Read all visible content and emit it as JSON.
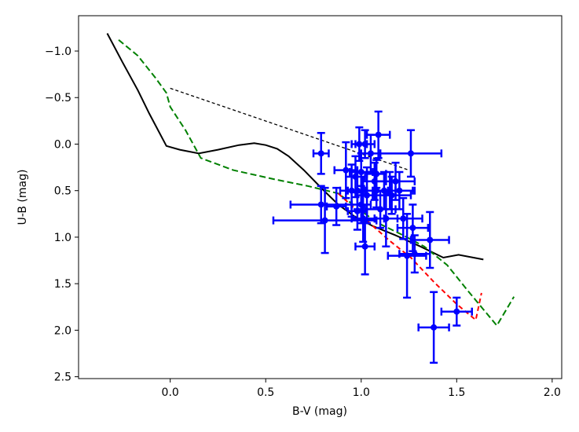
{
  "chart_data": {
    "type": "scatter",
    "xlabel": "B-V (mag)",
    "ylabel": "U-B (mag)",
    "xlim": [
      -0.48,
      2.05
    ],
    "ylim": [
      2.52,
      -1.38
    ],
    "y_inverted": true,
    "x_ticks": [
      {
        "value": 0.0,
        "label": "0.0"
      },
      {
        "value": 0.5,
        "label": "0.5"
      },
      {
        "value": 1.0,
        "label": "1.0"
      },
      {
        "value": 1.5,
        "label": "1.5"
      },
      {
        "value": 2.0,
        "label": "2.0"
      }
    ],
    "y_ticks": [
      {
        "value": -1.0,
        "label": "−1.0"
      },
      {
        "value": -0.5,
        "label": "−0.5"
      },
      {
        "value": 0.0,
        "label": "0.0"
      },
      {
        "value": 0.5,
        "label": "0.5"
      },
      {
        "value": 1.0,
        "label": "1.0"
      },
      {
        "value": 1.5,
        "label": "1.5"
      },
      {
        "value": 2.0,
        "label": "2.0"
      },
      {
        "value": 2.5,
        "label": "2.5"
      }
    ],
    "grid": false,
    "lines": [
      {
        "id": "black-solid",
        "color": "#000000",
        "dash": "",
        "points": [
          [
            -0.33,
            -1.19
          ],
          [
            -0.25,
            -0.88
          ],
          [
            -0.17,
            -0.58
          ],
          [
            -0.11,
            -0.33
          ],
          [
            -0.02,
            0.02
          ],
          [
            0.05,
            0.06
          ],
          [
            0.15,
            0.1
          ],
          [
            0.25,
            0.06
          ],
          [
            0.36,
            0.01
          ],
          [
            0.44,
            -0.01
          ],
          [
            0.5,
            0.01
          ],
          [
            0.56,
            0.05
          ],
          [
            0.62,
            0.13
          ],
          [
            0.7,
            0.28
          ],
          [
            0.8,
            0.49
          ],
          [
            0.88,
            0.65
          ],
          [
            0.96,
            0.77
          ],
          [
            1.06,
            0.88
          ],
          [
            1.18,
            0.98
          ],
          [
            1.31,
            1.1
          ],
          [
            1.43,
            1.22
          ],
          [
            1.51,
            1.19
          ],
          [
            1.64,
            1.24
          ]
        ]
      },
      {
        "id": "green-dashed",
        "color": "#008000",
        "dash": "8,4",
        "points": [
          [
            -0.27,
            -1.12
          ],
          [
            -0.17,
            -0.95
          ],
          [
            -0.08,
            -0.72
          ],
          [
            -0.02,
            -0.55
          ],
          [
            0.0,
            -0.4
          ],
          [
            0.08,
            -0.15
          ],
          [
            0.16,
            0.15
          ],
          [
            0.33,
            0.28
          ],
          [
            0.55,
            0.38
          ],
          [
            0.72,
            0.45
          ],
          [
            0.88,
            0.53
          ],
          [
            0.97,
            0.67
          ],
          [
            1.08,
            0.84
          ],
          [
            1.21,
            0.97
          ],
          [
            1.33,
            1.1
          ],
          [
            1.45,
            1.3
          ],
          [
            1.56,
            1.58
          ],
          [
            1.71,
            1.95
          ],
          [
            1.8,
            1.64
          ]
        ]
      },
      {
        "id": "red-dashed",
        "color": "#ff0000",
        "dash": "6,4",
        "points": [
          [
            0.88,
            0.53
          ],
          [
            0.96,
            0.68
          ],
          [
            1.05,
            0.86
          ],
          [
            1.15,
            1.04
          ],
          [
            1.26,
            1.22
          ],
          [
            1.38,
            1.48
          ],
          [
            1.5,
            1.72
          ],
          [
            1.6,
            1.89
          ],
          [
            1.63,
            1.6
          ]
        ]
      },
      {
        "id": "black-dashed",
        "color": "#000000",
        "dash": "4,3",
        "points": [
          [
            0.0,
            -0.6
          ],
          [
            1.25,
            0.28
          ]
        ]
      }
    ],
    "points_color": "#0000ff",
    "points": [
      {
        "x": 0.79,
        "y": 0.1,
        "xerr": 0.04,
        "yerr": 0.22
      },
      {
        "x": 0.79,
        "y": 0.65,
        "xerr": 0.16,
        "yerr": 0.2
      },
      {
        "x": 0.81,
        "y": 0.82,
        "xerr": 0.27,
        "yerr": 0.35
      },
      {
        "x": 0.87,
        "y": 0.67,
        "xerr": 0.05,
        "yerr": 0.2
      },
      {
        "x": 0.92,
        "y": 0.28,
        "xerr": 0.06,
        "yerr": 0.3
      },
      {
        "x": 0.95,
        "y": 0.5,
        "xerr": 0.06,
        "yerr": 0.28
      },
      {
        "x": 0.97,
        "y": 0.35,
        "xerr": 0.05,
        "yerr": 0.22
      },
      {
        "x": 0.98,
        "y": 0.72,
        "xerr": 0.05,
        "yerr": 0.2
      },
      {
        "x": 0.98,
        "y": 0.5,
        "xerr": 0.05,
        "yerr": 0.2
      },
      {
        "x": 0.99,
        "y": 0.0,
        "xerr": 0.04,
        "yerr": 0.18
      },
      {
        "x": 1.0,
        "y": 0.3,
        "xerr": 0.06,
        "yerr": 0.2
      },
      {
        "x": 1.0,
        "y": 0.65,
        "xerr": 0.05,
        "yerr": 0.2
      },
      {
        "x": 1.01,
        "y": 0.8,
        "xerr": 0.06,
        "yerr": 0.25
      },
      {
        "x": 1.02,
        "y": 1.1,
        "xerr": 0.05,
        "yerr": 0.3
      },
      {
        "x": 1.02,
        "y": 0.0,
        "xerr": 0.05,
        "yerr": 0.15
      },
      {
        "x": 1.03,
        "y": 0.55,
        "xerr": 0.05,
        "yerr": 0.3
      },
      {
        "x": 1.05,
        "y": 0.1,
        "xerr": 0.05,
        "yerr": 0.2
      },
      {
        "x": 1.07,
        "y": 0.4,
        "xerr": 0.06,
        "yerr": 0.2
      },
      {
        "x": 1.08,
        "y": 0.5,
        "xerr": 0.06,
        "yerr": 0.18
      },
      {
        "x": 1.08,
        "y": 0.32,
        "xerr": 0.05,
        "yerr": 0.15
      },
      {
        "x": 1.09,
        "y": -0.1,
        "xerr": 0.06,
        "yerr": 0.25
      },
      {
        "x": 1.1,
        "y": 0.7,
        "xerr": 0.08,
        "yerr": 0.2
      },
      {
        "x": 1.12,
        "y": 0.5,
        "xerr": 0.06,
        "yerr": 0.2
      },
      {
        "x": 1.13,
        "y": 0.8,
        "xerr": 0.06,
        "yerr": 0.3
      },
      {
        "x": 1.15,
        "y": 0.5,
        "xerr": 0.12,
        "yerr": 0.2
      },
      {
        "x": 1.16,
        "y": 0.55,
        "xerr": 0.1,
        "yerr": 0.2
      },
      {
        "x": 1.18,
        "y": 0.4,
        "xerr": 0.1,
        "yerr": 0.2
      },
      {
        "x": 1.2,
        "y": 0.5,
        "xerr": 0.08,
        "yerr": 0.2
      },
      {
        "x": 1.22,
        "y": 0.8,
        "xerr": 0.1,
        "yerr": 0.22
      },
      {
        "x": 1.24,
        "y": 1.2,
        "xerr": 0.1,
        "yerr": 0.45
      },
      {
        "x": 1.26,
        "y": 0.1,
        "xerr": 0.16,
        "yerr": 0.25
      },
      {
        "x": 1.27,
        "y": 0.9,
        "xerr": 0.08,
        "yerr": 0.25
      },
      {
        "x": 1.28,
        "y": 1.18,
        "xerr": 0.08,
        "yerr": 0.2
      },
      {
        "x": 1.36,
        "y": 1.03,
        "xerr": 0.1,
        "yerr": 0.3
      },
      {
        "x": 1.38,
        "y": 1.97,
        "xerr": 0.08,
        "yerr": 0.38
      },
      {
        "x": 1.5,
        "y": 1.8,
        "xerr": 0.08,
        "yerr": 0.15
      }
    ]
  }
}
